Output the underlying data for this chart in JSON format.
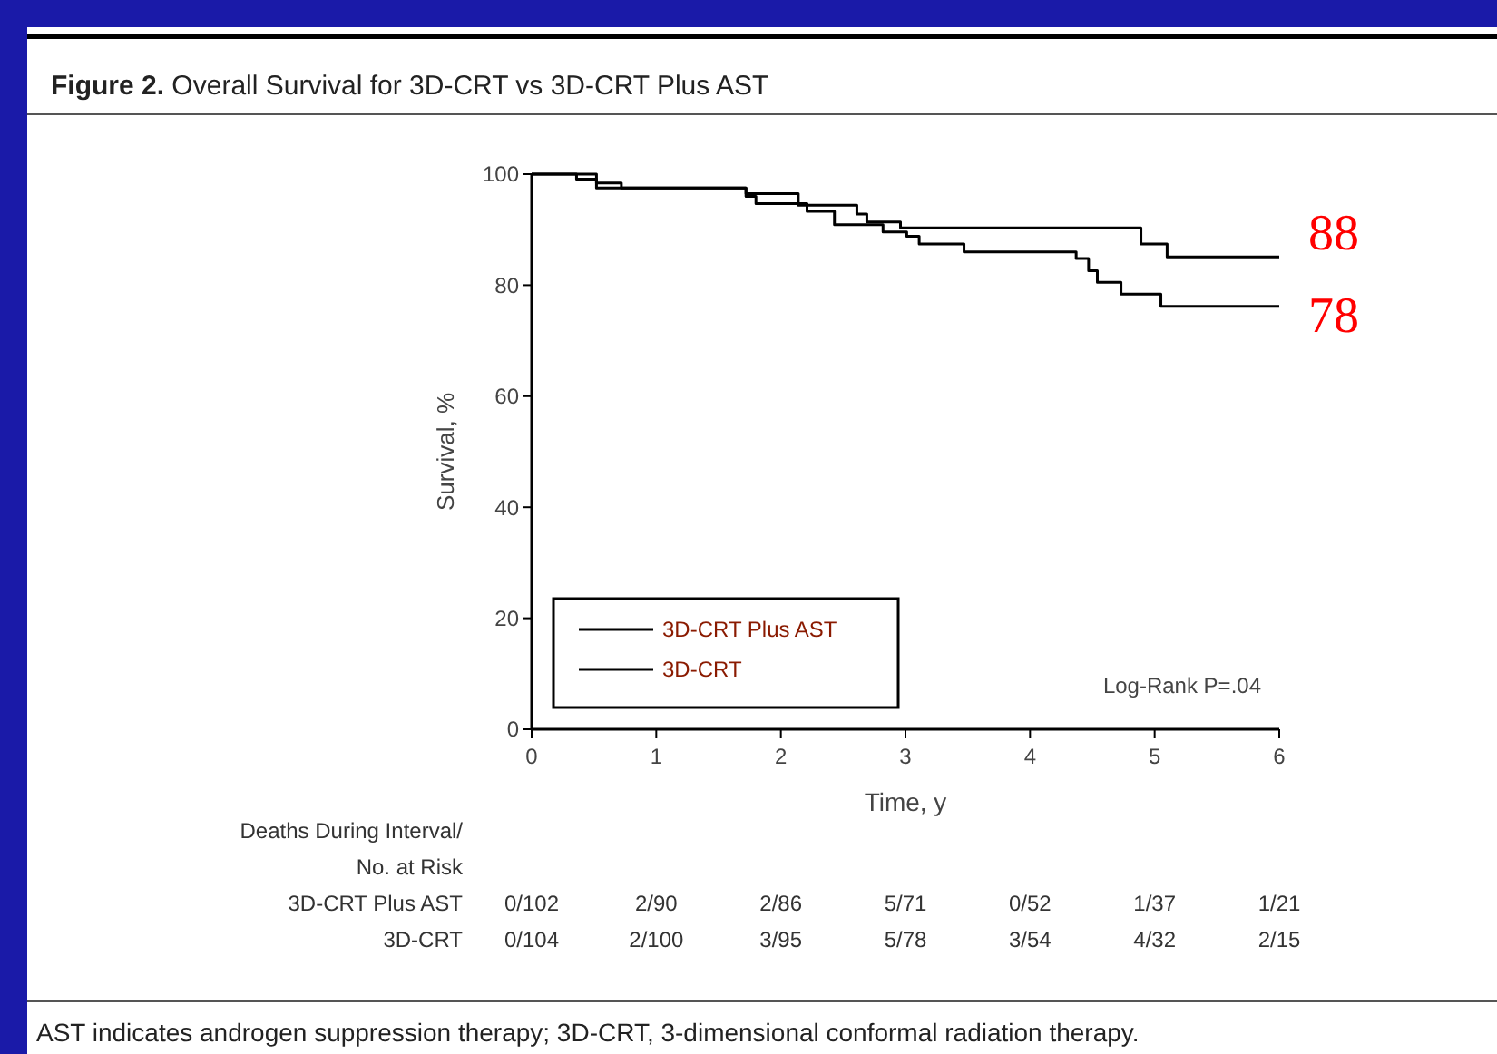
{
  "chart_data": {
    "type": "step",
    "title": "Figure 2. Overall Survival for 3D-CRT vs 3D-CRT Plus AST",
    "xlabel": "Time, y",
    "ylabel": "Survival, %",
    "xlim": [
      0,
      6
    ],
    "xticks": [
      0,
      1,
      2,
      3,
      4,
      5,
      6
    ],
    "ylim": [
      0,
      100
    ],
    "yticks": [
      0,
      20,
      40,
      60,
      80,
      100
    ],
    "series": [
      {
        "name": "3D-CRT Plus AST",
        "color": "#000000",
        "x": [
          0,
          0.52,
          0.72,
          1.72,
          2.14,
          2.61,
          2.69,
          2.96,
          4.89,
          5.1,
          6
        ],
        "values": [
          100,
          98.4,
          97.5,
          96.5,
          94.4,
          92.8,
          91.4,
          90.3,
          87.4,
          85.1,
          85.1
        ]
      },
      {
        "name": "3D-CRT",
        "color": "#000000",
        "x": [
          0,
          0.36,
          0.52,
          1.72,
          1.8,
          2.21,
          2.43,
          2.82,
          3.01,
          3.11,
          3.47,
          4.37,
          4.47,
          4.54,
          4.73,
          5.05,
          6
        ],
        "values": [
          100,
          99.1,
          97.5,
          96.0,
          94.7,
          93.3,
          90.9,
          89.6,
          88.8,
          87.4,
          86.0,
          84.8,
          82.6,
          80.5,
          78.4,
          76.2,
          76.2
        ]
      }
    ],
    "legend": "bottom left",
    "grid": false,
    "line_style": "solid",
    "annotations": [
      "Log-Rank P=.04",
      {
        "text": "88",
        "x": 6,
        "y": 85.1
      },
      {
        "text": "78",
        "x": 6,
        "y": 76.2
      },
      "Deaths During Interval/\nNo. at Risk",
      "3D-CRT Plus AST",
      "0/102",
      "2/90",
      "2/86",
      "5/71",
      "0/52",
      "1/37",
      "1/21",
      "3D-CRT",
      "0/104",
      "2/100",
      "3/95",
      "5/78",
      "3/54",
      "4/32",
      "2/15",
      "AST indicates androgen suppression therapy; 3D-CRT, 3-dimensional conformal radiation therapy."
    ]
  }
}
